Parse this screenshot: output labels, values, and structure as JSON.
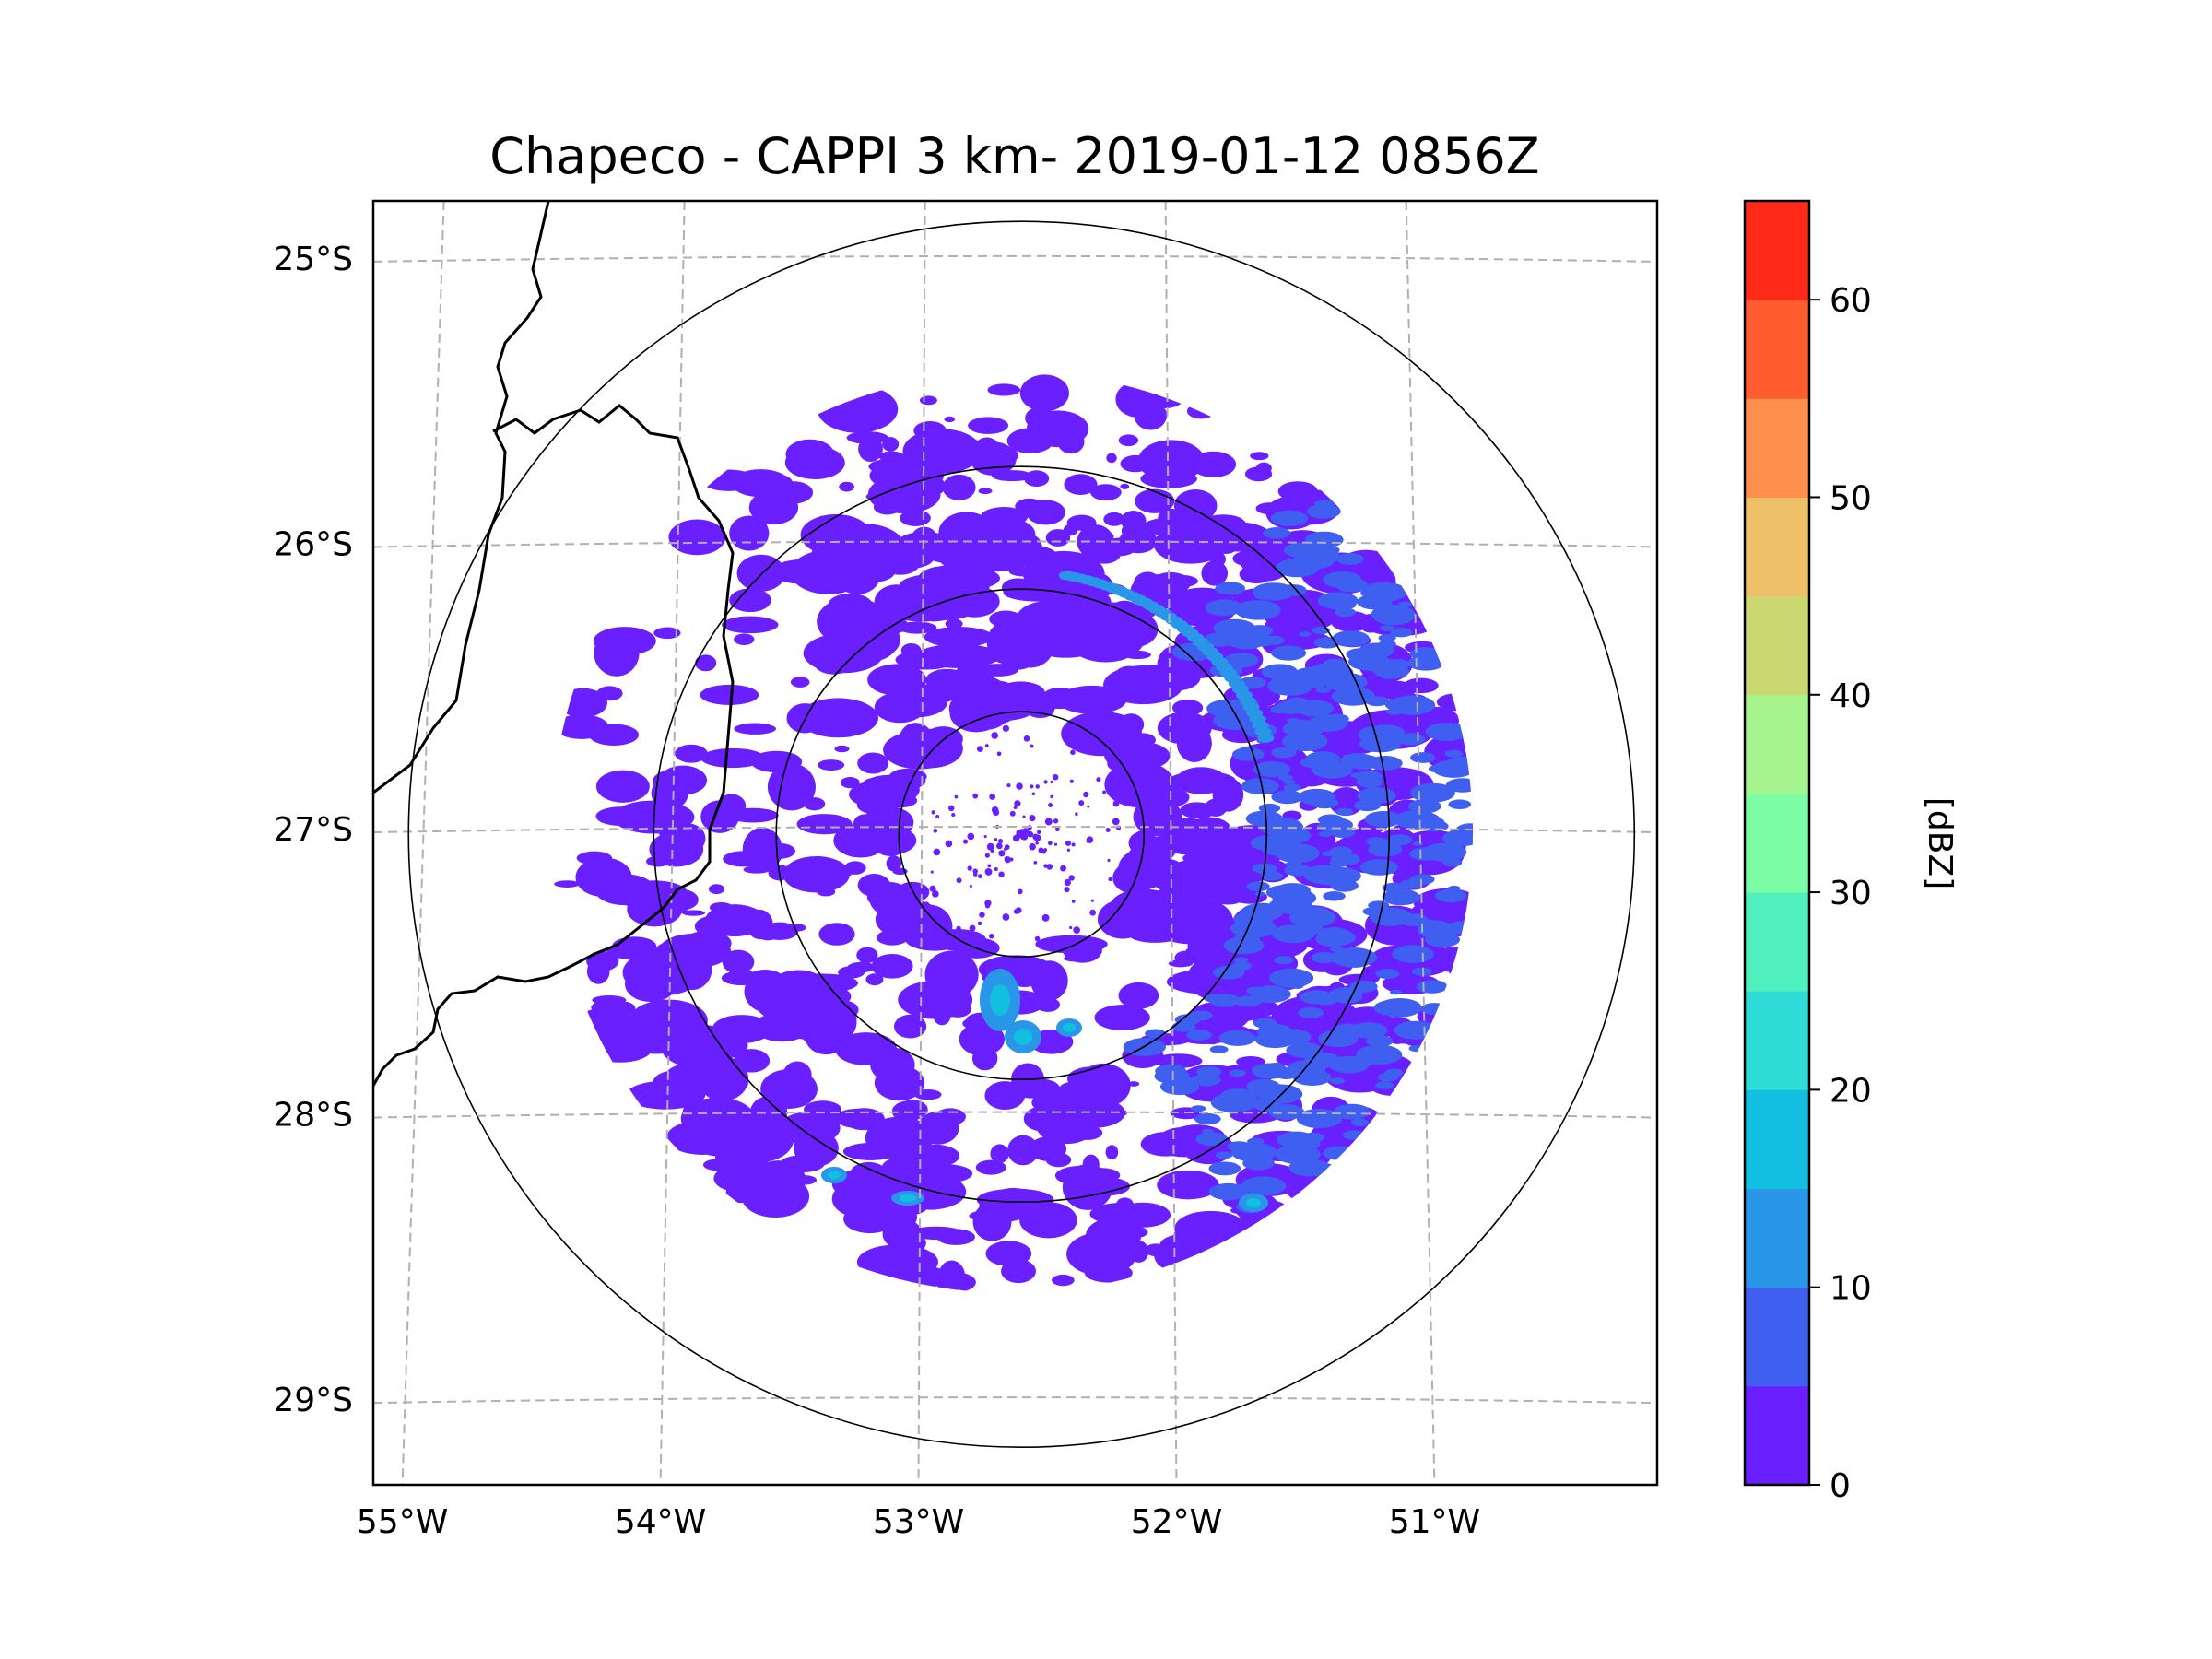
{
  "chart_data": {
    "type": "radar-map",
    "title": "Chapeco - CAPPI 3 km- 2019-01-12 0856Z",
    "radar_center": {
      "lon": -52.6,
      "lat": -27.02
    },
    "range_rings": [
      50,
      100,
      150,
      250
    ],
    "lat_ticks": [
      {
        "value": -25,
        "label": "25°S"
      },
      {
        "value": -26,
        "label": "26°S"
      },
      {
        "value": -27,
        "label": "27°S"
      },
      {
        "value": -28,
        "label": "28°S"
      },
      {
        "value": -29,
        "label": "29°S"
      }
    ],
    "lon_ticks": [
      {
        "value": -55,
        "label": "55°W"
      },
      {
        "value": -54,
        "label": "54°W"
      },
      {
        "value": -53,
        "label": "53°W"
      },
      {
        "value": -52,
        "label": "52°W"
      },
      {
        "value": -51,
        "label": "51°W"
      }
    ],
    "lon_range": [
      -55.2,
      -50.05
    ],
    "lat_range": [
      -29.3,
      -24.8
    ],
    "grid": true,
    "colorbar": {
      "label": "[dBZ]",
      "ticks": [
        0,
        10,
        20,
        30,
        40,
        50,
        60
      ],
      "bounds": [
        0,
        5,
        10,
        15,
        20,
        25,
        30,
        35,
        40,
        45,
        50,
        55,
        60,
        65
      ],
      "colors": [
        "#6a1fff",
        "#3f5ff0",
        "#2996e8",
        "#12bfe0",
        "#2ddcd6",
        "#4ff0bd",
        "#7dfca6",
        "#a6f48d",
        "#cbd872",
        "#eec06a",
        "#ff8f4d",
        "#ff5c30",
        "#ff2a1a"
      ]
    },
    "echo_regions": [
      {
        "dbz": 3,
        "desc": "widespread weak echo ring 50-150 km"
      },
      {
        "dbz": 8,
        "desc": "moderate echo band east sector"
      },
      {
        "dbz": 14,
        "desc": "embedded cells south-southeast of radar"
      },
      {
        "dbz": 18,
        "desc": "cell clusters southwest near edge"
      }
    ]
  }
}
